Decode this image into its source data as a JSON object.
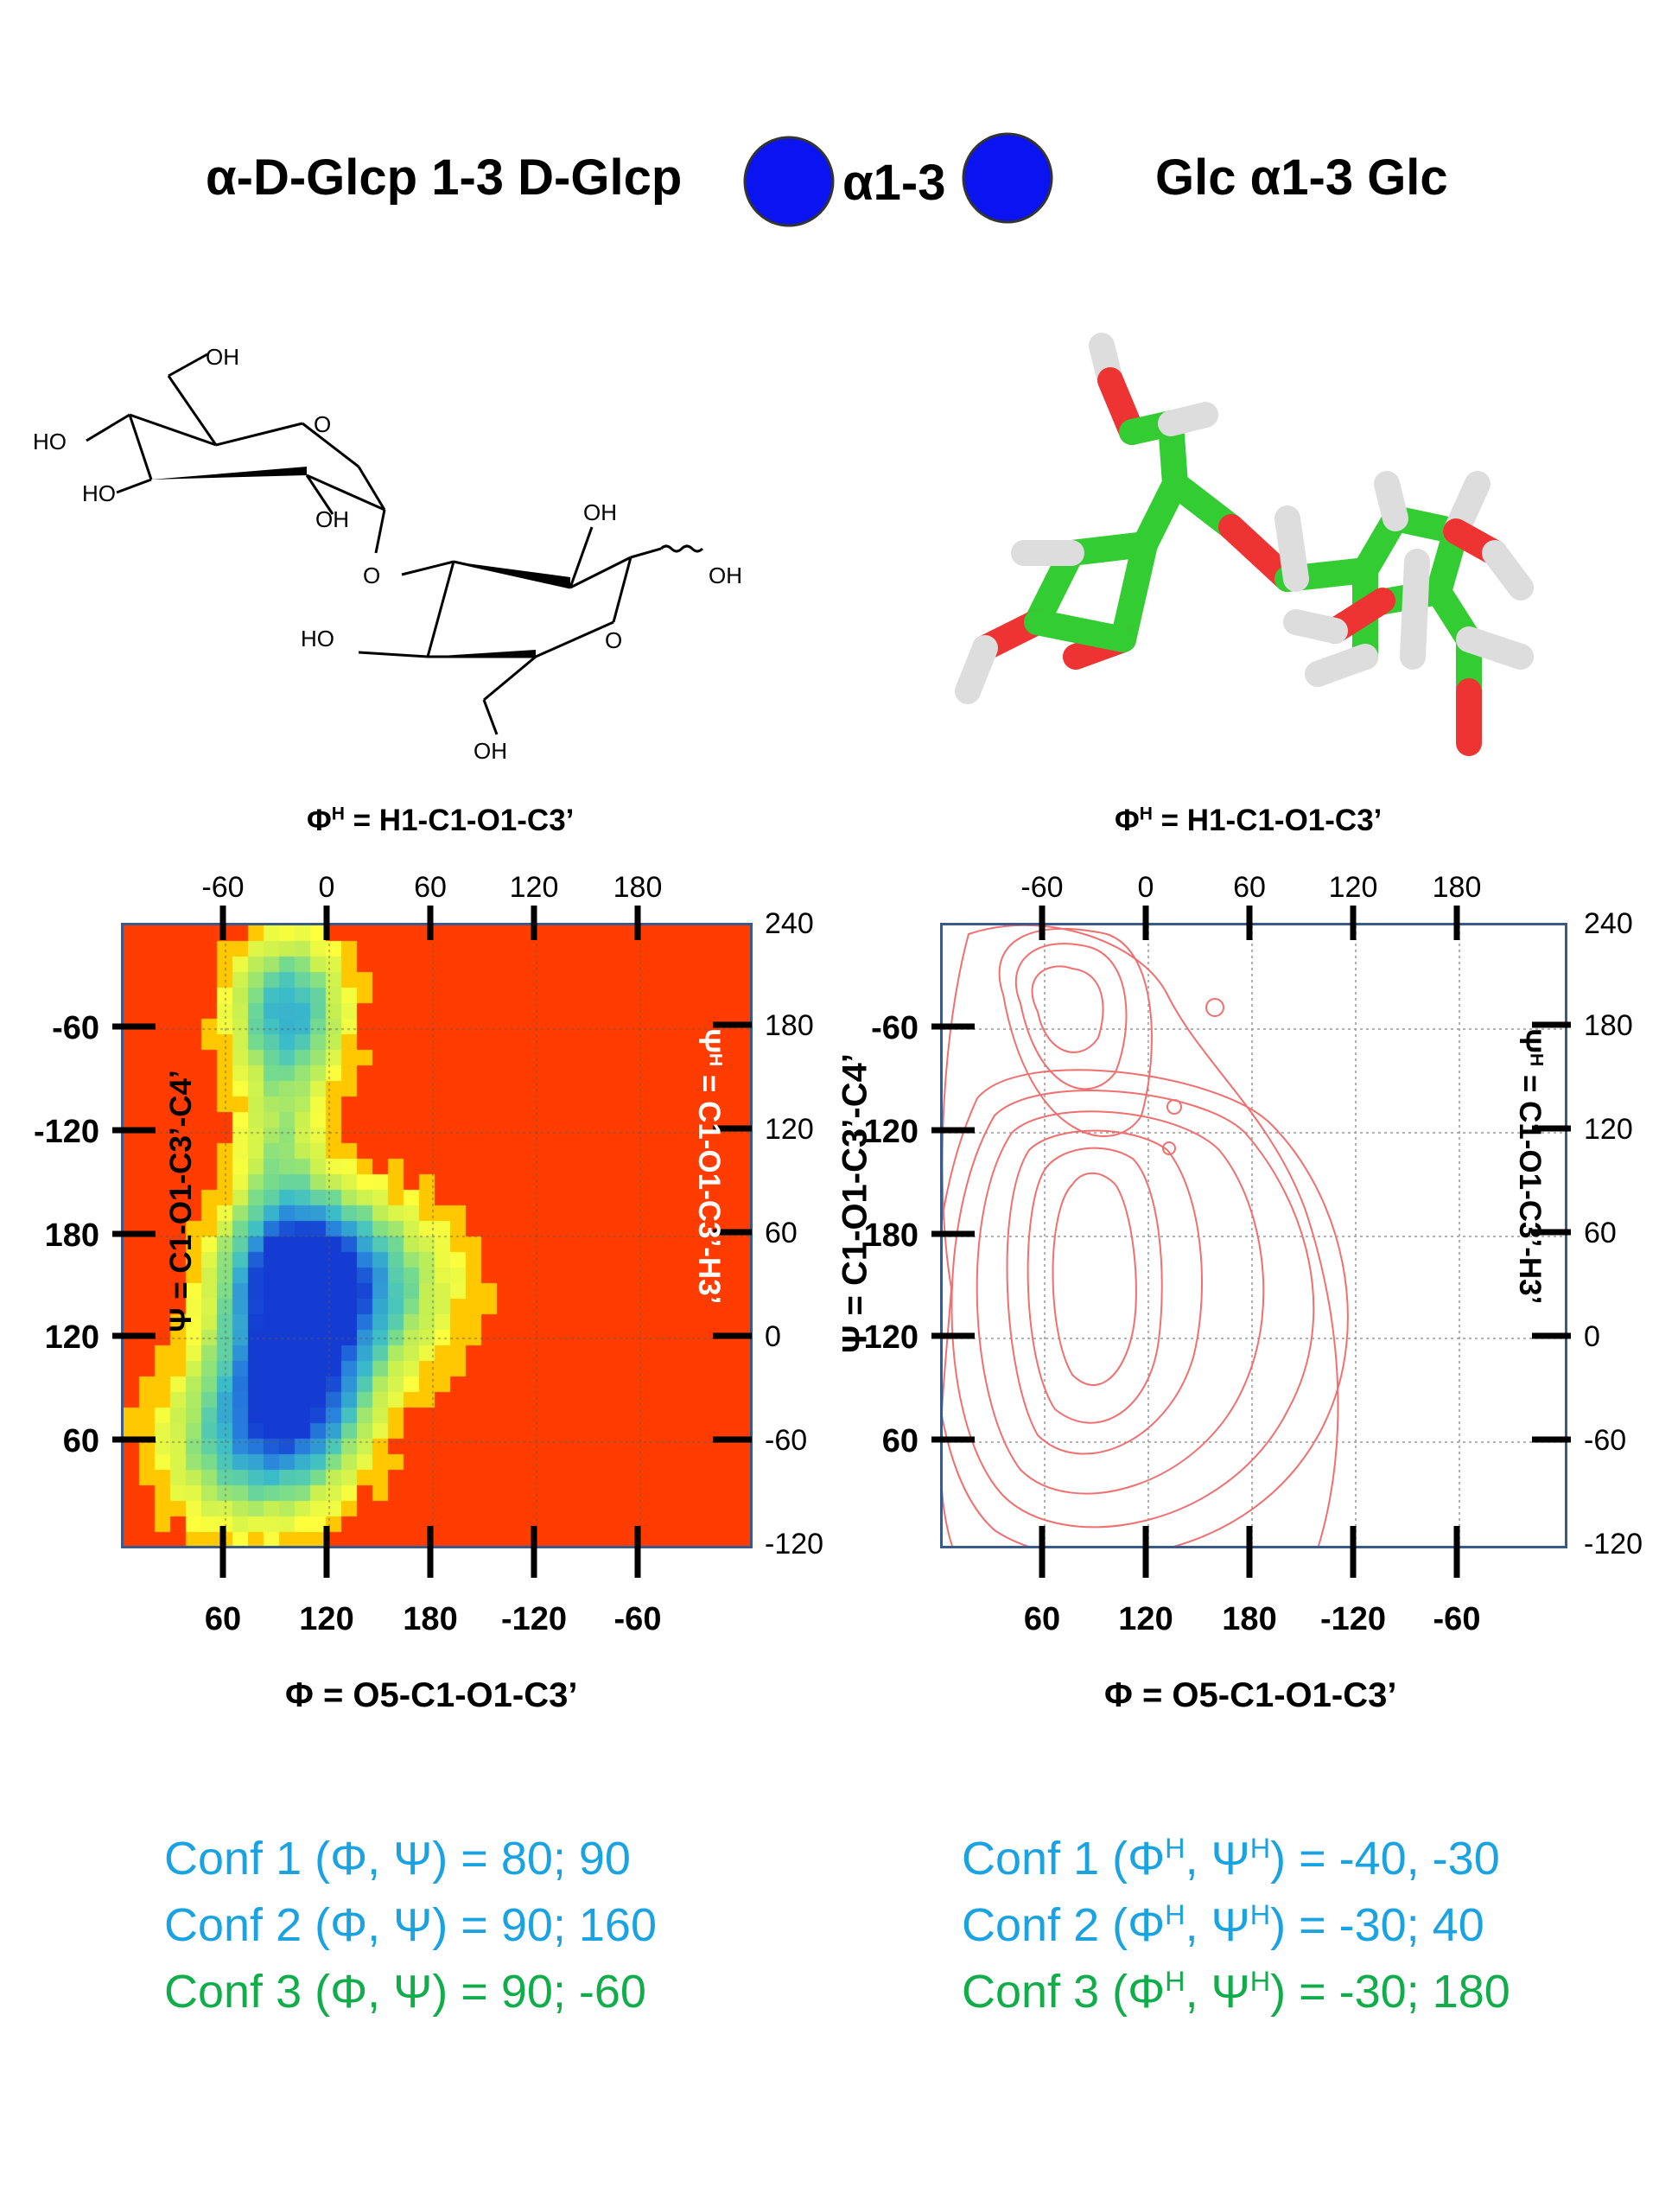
{
  "header": {
    "iupac": "α-D-Glcp 1-3 D-Glcp",
    "snfg_linkage": "α1-3",
    "short": "Glc α1-3 Glc",
    "snfg_color": "#0a14f0"
  },
  "structure_labels": [
    "OH",
    "O",
    "HO",
    "HO",
    "OH",
    "O",
    "OH",
    "OH",
    "HO",
    "O",
    "OH"
  ],
  "panels": {
    "top_axis_title": "Φ^H = H1-C1-O1-C3’",
    "bottom_axis_title": "Φ = O5-C1-O1-C3’",
    "left_axis_title": "Ψ = C1-O1-C3’-C4’",
    "right_axis_title": "Ψ^H = C1-O1-C3’-H3’",
    "top_ticks": [
      "-60",
      "0",
      "60",
      "120",
      "180"
    ],
    "bottom_ticks": [
      "60",
      "120",
      "180",
      "-120",
      "-60"
    ],
    "left_ticks": [
      "-60",
      "-120",
      "180",
      "120",
      "60"
    ],
    "right_ticks": [
      "240",
      "180",
      "120",
      "60",
      "0",
      "-60",
      "-120"
    ]
  },
  "chart_data": [
    {
      "type": "heatmap",
      "description_axes": "Φ (bottom) / Ψ (left), Φ^H (top) / Ψ^H (right)",
      "x_ticks_bottom": [
        60,
        120,
        180,
        -120,
        -60
      ],
      "y_ticks_left": [
        -60,
        -120,
        180,
        120,
        60
      ],
      "background_color": "#ff3c00",
      "minima": [
        {
          "phi": 80,
          "psi": 90
        },
        {
          "phi": 90,
          "psi": 160
        },
        {
          "phi": 90,
          "psi": -60
        }
      ]
    },
    {
      "type": "contour",
      "line_color": "#f07070",
      "grid": true
    }
  ],
  "conformations": {
    "left": [
      {
        "label": "Conf 1 (Φ, Ψ) = 80; 90",
        "color": "#1aa3e0"
      },
      {
        "label": "Conf 2 (Φ, Ψ) = 90; 160",
        "color": "#1aa3e0"
      },
      {
        "label": "Conf 3 (Φ, Ψ) = 90; -60",
        "color": "#12ad4b"
      }
    ],
    "right": [
      {
        "label": "Conf 1 (Φ^H, Ψ^H) = -40, -30",
        "color": "#1aa3e0"
      },
      {
        "label": "Conf 2 (Φ^H, Ψ^H) = -30; 40",
        "color": "#1aa3e0"
      },
      {
        "label": "Conf 3 (Φ^H, Ψ^H) = -30; 180",
        "color": "#12ad4b"
      }
    ]
  }
}
